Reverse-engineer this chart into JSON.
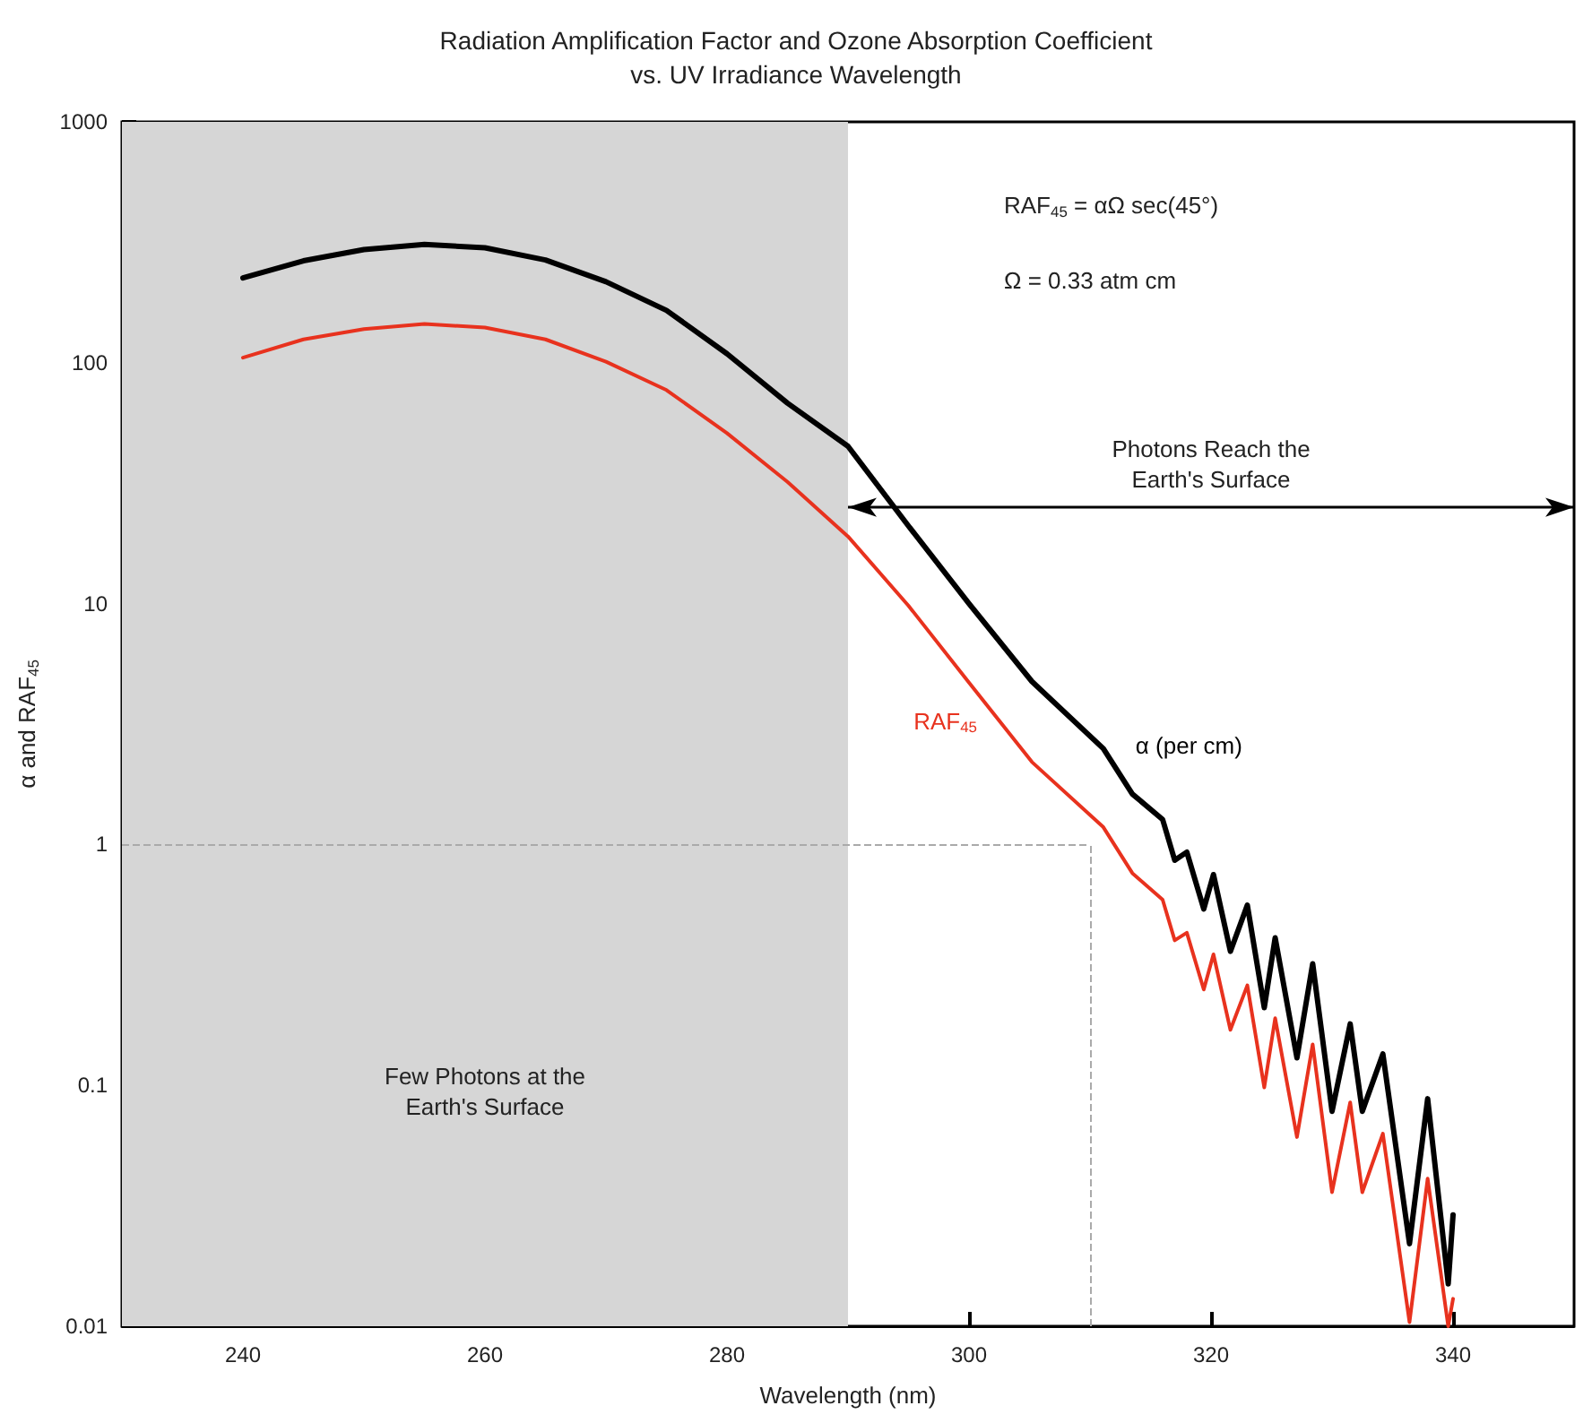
{
  "chart_data": {
    "type": "line",
    "title": "Radiation Amplification Factor and Ozone Absorption Coefficient\nvs. UV Irradiance Wavelength",
    "xlabel": "Wavelength (nm)",
    "ylabel": "α and RAF$_{45}$",
    "series": [
      {
        "name": "α (per cm)",
        "color": "#000000",
        "x": [
          240,
          245,
          250,
          255,
          260,
          265,
          270,
          275,
          280,
          285,
          290,
          295,
          300,
          305.2,
          311.1,
          313.5,
          316,
          317,
          318,
          319.4,
          320.2,
          321.6,
          323,
          324.4,
          325.3,
          327.1,
          328.4,
          330,
          331.5,
          332.5,
          334.2,
          336.4,
          337.9,
          339.6,
          340
        ],
        "values": [
          225,
          265,
          295,
          310,
          300,
          267,
          217,
          165,
          109,
          68,
          45,
          21,
          10,
          4.75,
          2.5,
          1.62,
          1.27,
          0.86,
          0.93,
          0.54,
          0.75,
          0.36,
          0.56,
          0.21,
          0.41,
          0.13,
          0.32,
          0.078,
          0.18,
          0.078,
          0.135,
          0.022,
          0.088,
          0.015,
          0.029
        ]
      },
      {
        "name": "RAF$_{45}$",
        "color": "#e8321e",
        "x": [
          240,
          245,
          250,
          255,
          260,
          265,
          270,
          275,
          280,
          285,
          290,
          295,
          300,
          305.2,
          311.1,
          313.5,
          316,
          317,
          318,
          319.4,
          320.2,
          321.6,
          323,
          324.4,
          325.3,
          327.1,
          328.4,
          330,
          331.5,
          332.5,
          334.2,
          336.4,
          337.9,
          339.6,
          340
        ],
        "values": [
          105,
          125,
          138,
          145,
          140,
          125,
          101,
          77,
          51,
          32,
          19,
          9.8,
          4.7,
          2.2,
          1.18,
          0.76,
          0.59,
          0.4,
          0.43,
          0.25,
          0.35,
          0.17,
          0.26,
          0.098,
          0.19,
          0.061,
          0.148,
          0.036,
          0.085,
          0.036,
          0.063,
          0.0104,
          0.041,
          0.01,
          0.013
        ]
      }
    ],
    "xlim": [
      230,
      350
    ],
    "xticks": [
      240,
      260,
      280,
      300,
      320,
      340
    ],
    "ylim": [
      0.01,
      1000
    ],
    "yticks": [
      0.01,
      0.1,
      1,
      10,
      100,
      1000
    ],
    "log": true,
    "grid": false,
    "legend": false,
    "marker": "none",
    "line_style": "solid",
    "bands": [
      {
        "axis": "x",
        "from": 230,
        "to": 290,
        "label": "Few Photons at the\nEarth's Surface",
        "color": "#d6d6d6"
      }
    ],
    "ref_lines": [
      {
        "axis": "y",
        "value": 1,
        "color": "#aaaaaa",
        "line_style": "dashed"
      },
      {
        "axis": "x",
        "value": 310,
        "color": "#aaaaaa",
        "line_style": "dashed"
      }
    ],
    "annotations": [
      "RAF$_{45}$ = αΩ sec(45°)",
      "Ω = 0.33 atm cm",
      "Photons Reach the\nEarth's Surface"
    ]
  }
}
